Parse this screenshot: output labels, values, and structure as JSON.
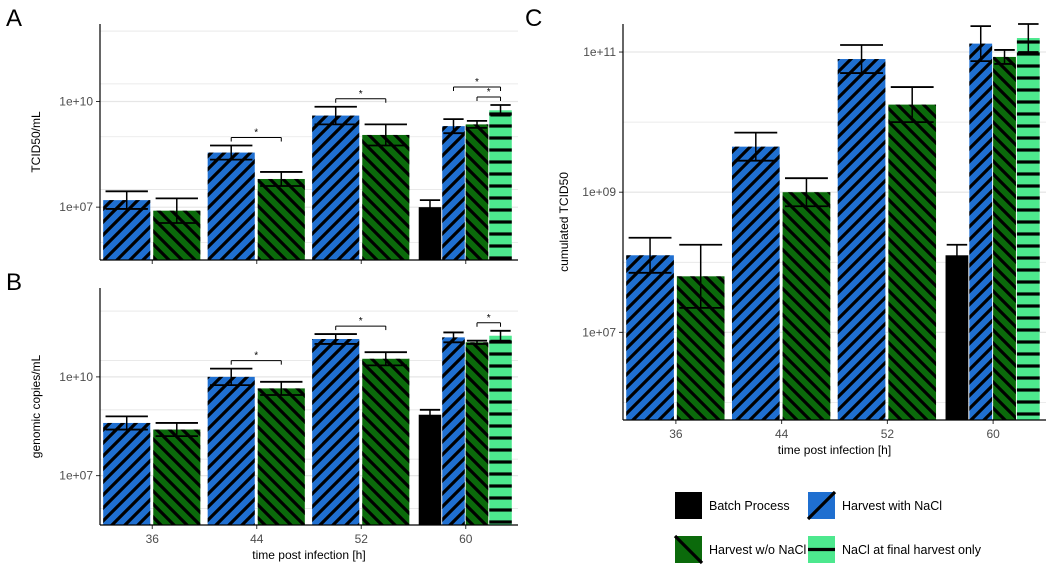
{
  "colors": {
    "batch": "#000000",
    "with_nacl": "#1f6fd0",
    "wo_nacl": "#0b6a0b",
    "final_only": "#4de88e",
    "hatch": "#000000",
    "grid": "#e6e6e6",
    "axis": "#000000",
    "tick_text": "#4d4d4d"
  },
  "legend": {
    "items": [
      {
        "key": "batch",
        "label": "Batch Process",
        "pattern": "solid"
      },
      {
        "key": "with_nacl",
        "label": "Harvest with NaCl",
        "pattern": "diag-up"
      },
      {
        "key": "wo_nacl",
        "label": "Harvest w/o NaCl",
        "pattern": "diag-down"
      },
      {
        "key": "final_only",
        "label": "NaCl at final harvest only",
        "pattern": "horizontal"
      }
    ]
  },
  "chart_data": [
    {
      "panel": "A",
      "type": "bar",
      "scale": "log10",
      "ylabel": "TCID50/mL",
      "xlabel": "",
      "categories": [
        "36",
        "44",
        "52",
        "60"
      ],
      "y_ticks": [
        "1e+07",
        "1e+10"
      ],
      "ylim_log": [
        5.5,
        12.2
      ],
      "series": [
        {
          "name": "Batch Process",
          "key": "batch",
          "values_log": [
            null,
            null,
            null,
            7.0
          ],
          "err_log": [
            null,
            null,
            null,
            0.2
          ]
        },
        {
          "name": "Harvest with NaCl",
          "key": "with_nacl",
          "values_log": [
            7.2,
            8.55,
            9.6,
            9.3
          ],
          "err_log": [
            0.25,
            0.2,
            0.25,
            0.2
          ]
        },
        {
          "name": "Harvest w/o NaCl",
          "key": "wo_nacl",
          "values_log": [
            6.9,
            7.8,
            9.05,
            9.35
          ],
          "err_log": [
            0.35,
            0.2,
            0.3,
            0.1
          ]
        },
        {
          "name": "NaCl at final harvest only",
          "key": "final_only",
          "values_log": [
            null,
            null,
            null,
            9.75
          ],
          "err_log": [
            null,
            null,
            null,
            0.15
          ]
        }
      ],
      "significance": [
        {
          "category": "44",
          "from": "Harvest with NaCl",
          "to": "Harvest w/o NaCl",
          "label": "*"
        },
        {
          "category": "52",
          "from": "Harvest with NaCl",
          "to": "Harvest w/o NaCl",
          "label": "*"
        },
        {
          "category": "60",
          "from": "Harvest with NaCl",
          "to": "NaCl at final harvest only",
          "label": "*"
        },
        {
          "category": "60",
          "from": "Harvest w/o NaCl",
          "to": "NaCl at final harvest only",
          "label": "*"
        }
      ]
    },
    {
      "panel": "B",
      "type": "bar",
      "scale": "log10",
      "ylabel": "genomic copies/mL",
      "xlabel": "time post infection [h]",
      "categories": [
        "36",
        "44",
        "52",
        "60"
      ],
      "y_ticks": [
        "1e+07",
        "1e+10"
      ],
      "ylim_log": [
        5.5,
        12.7
      ],
      "series": [
        {
          "name": "Batch Process",
          "key": "batch",
          "values_log": [
            null,
            null,
            null,
            8.85
          ],
          "err_log": [
            null,
            null,
            null,
            0.15
          ]
        },
        {
          "name": "Harvest with NaCl",
          "key": "with_nacl",
          "values_log": [
            8.6,
            10.0,
            11.15,
            11.2
          ],
          "err_log": [
            0.2,
            0.25,
            0.15,
            0.15
          ]
        },
        {
          "name": "Harvest w/o NaCl",
          "key": "wo_nacl",
          "values_log": [
            8.4,
            9.65,
            10.55,
            11.05
          ],
          "err_log": [
            0.2,
            0.2,
            0.2,
            0.05
          ]
        },
        {
          "name": "NaCl at final harvest only",
          "key": "final_only",
          "values_log": [
            null,
            null,
            null,
            11.25
          ],
          "err_log": [
            null,
            null,
            null,
            0.15
          ]
        }
      ],
      "significance": [
        {
          "category": "44",
          "from": "Harvest with NaCl",
          "to": "Harvest w/o NaCl",
          "label": "*"
        },
        {
          "category": "52",
          "from": "Harvest with NaCl",
          "to": "Harvest w/o NaCl",
          "label": "*"
        },
        {
          "category": "60",
          "from": "Harvest w/o NaCl",
          "to": "NaCl at final harvest only",
          "label": "*"
        }
      ]
    },
    {
      "panel": "C",
      "type": "bar",
      "scale": "log10",
      "ylabel": "cumulated TCID50",
      "xlabel": "time post infection [h]",
      "categories": [
        "36",
        "44",
        "52",
        "60"
      ],
      "y_ticks": [
        "1e+07",
        "1e+09",
        "1e+11"
      ],
      "ylim_log": [
        5.75,
        11.4
      ],
      "series": [
        {
          "name": "Batch Process",
          "key": "batch",
          "values_log": [
            null,
            null,
            null,
            8.1
          ],
          "err_log": [
            null,
            null,
            null,
            0.15
          ]
        },
        {
          "name": "Harvest with NaCl",
          "key": "with_nacl",
          "values_log": [
            8.1,
            9.65,
            10.9,
            11.12
          ],
          "err_log": [
            0.25,
            0.2,
            0.2,
            0.25
          ]
        },
        {
          "name": "Harvest w/o NaCl",
          "key": "wo_nacl",
          "values_log": [
            7.8,
            9.0,
            10.25,
            10.93
          ],
          "err_log": [
            0.45,
            0.2,
            0.25,
            0.1
          ]
        },
        {
          "name": "NaCl at final harvest only",
          "key": "final_only",
          "values_log": [
            null,
            null,
            null,
            11.2
          ],
          "err_log": [
            null,
            null,
            null,
            0.2
          ]
        }
      ],
      "significance": []
    }
  ],
  "panel_labels": [
    "A",
    "B",
    "C"
  ]
}
